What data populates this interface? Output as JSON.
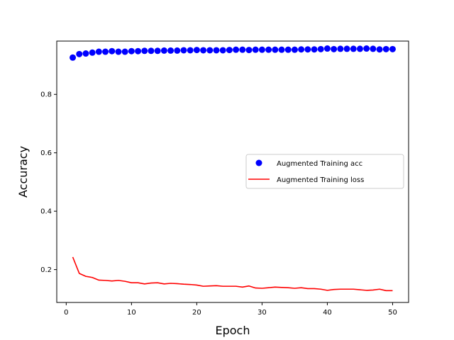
{
  "chart_data": {
    "type": "line",
    "title": "",
    "xlabel": "Epoch",
    "ylabel": "Accuracy",
    "xlim": [
      -1.45,
      52.45
    ],
    "ylim": [
      0.0875,
      0.9825
    ],
    "xticks": [
      0,
      10,
      20,
      30,
      40,
      50
    ],
    "yticks": [
      0.2,
      0.4,
      0.6,
      0.8
    ],
    "grid": false,
    "legend_position": "center-right",
    "x": [
      1,
      2,
      3,
      4,
      5,
      6,
      7,
      8,
      9,
      10,
      11,
      12,
      13,
      14,
      15,
      16,
      17,
      18,
      19,
      20,
      21,
      22,
      23,
      24,
      25,
      26,
      27,
      28,
      29,
      30,
      31,
      32,
      33,
      34,
      35,
      36,
      37,
      38,
      39,
      40,
      41,
      42,
      43,
      44,
      45,
      46,
      47,
      48,
      49,
      50
    ],
    "series": [
      {
        "name": "Augmented Training acc",
        "style": "markers",
        "color": "#0000ff",
        "values": [
          0.926,
          0.938,
          0.94,
          0.943,
          0.946,
          0.946,
          0.948,
          0.946,
          0.946,
          0.948,
          0.948,
          0.949,
          0.949,
          0.949,
          0.95,
          0.95,
          0.95,
          0.951,
          0.951,
          0.952,
          0.951,
          0.951,
          0.951,
          0.951,
          0.952,
          0.953,
          0.953,
          0.952,
          0.953,
          0.953,
          0.953,
          0.953,
          0.953,
          0.953,
          0.953,
          0.954,
          0.954,
          0.954,
          0.955,
          0.957,
          0.955,
          0.956,
          0.956,
          0.956,
          0.956,
          0.957,
          0.956,
          0.954,
          0.955,
          0.955
        ]
      },
      {
        "name": "Augmented Training loss",
        "style": "line",
        "color": "#ff0000",
        "values": [
          0.243,
          0.187,
          0.177,
          0.173,
          0.164,
          0.163,
          0.161,
          0.163,
          0.16,
          0.155,
          0.155,
          0.151,
          0.154,
          0.155,
          0.151,
          0.153,
          0.152,
          0.15,
          0.149,
          0.147,
          0.143,
          0.144,
          0.145,
          0.143,
          0.143,
          0.143,
          0.14,
          0.144,
          0.137,
          0.136,
          0.138,
          0.14,
          0.139,
          0.138,
          0.136,
          0.138,
          0.135,
          0.135,
          0.133,
          0.129,
          0.132,
          0.133,
          0.133,
          0.133,
          0.131,
          0.129,
          0.13,
          0.133,
          0.128,
          0.128
        ]
      }
    ]
  }
}
